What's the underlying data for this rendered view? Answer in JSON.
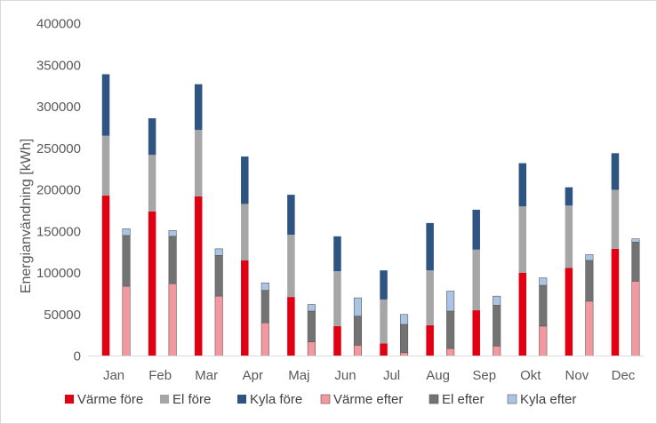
{
  "chart_data": {
    "type": "bar",
    "stacked": true,
    "grouped": true,
    "ylabel": "Energianvändning [kWh]",
    "ylim": [
      0,
      400000
    ],
    "yticks": [
      0,
      50000,
      100000,
      150000,
      200000,
      250000,
      300000,
      350000,
      400000
    ],
    "grid": false,
    "legend_position": "bottom",
    "categories": [
      "Jan",
      "Feb",
      "Mar",
      "Apr",
      "Maj",
      "Jun",
      "Jul",
      "Aug",
      "Sep",
      "Okt",
      "Nov",
      "Dec"
    ],
    "groups": [
      {
        "name": "före",
        "series": [
          {
            "name": "Värme före",
            "color": "#e00012",
            "values": [
              193000,
              174000,
              192000,
              115000,
              71000,
              36000,
              15000,
              37000,
              55000,
              100000,
              106000,
              129000
            ]
          },
          {
            "name": "El före",
            "color": "#a6a6a6",
            "values": [
              72000,
              68000,
              80000,
              68000,
              75000,
              66000,
              53000,
              66000,
              73000,
              80000,
              75000,
              71000
            ]
          },
          {
            "name": "Kyla före",
            "color": "#2e5582",
            "values": [
              74000,
              44000,
              55000,
              57000,
              48000,
              42000,
              35000,
              57000,
              48000,
              52000,
              22000,
              44000
            ]
          }
        ]
      },
      {
        "name": "efter",
        "series": [
          {
            "name": "Värme efter",
            "color": "#f4989f",
            "values": [
              84000,
              87000,
              72000,
              40000,
              17000,
              13000,
              4000,
              9000,
              12000,
              36000,
              66000,
              90000
            ]
          },
          {
            "name": "El efter",
            "color": "#737373",
            "values": [
              61000,
              57000,
              49000,
              39000,
              37000,
              35000,
              34000,
              45000,
              49000,
              49000,
              49000,
              47000
            ]
          },
          {
            "name": "Kyla efter",
            "color": "#a9c4e4",
            "values": [
              8000,
              7000,
              8000,
              9000,
              8000,
              22000,
              12000,
              24000,
              11000,
              9000,
              7000,
              4000
            ]
          }
        ]
      }
    ]
  }
}
